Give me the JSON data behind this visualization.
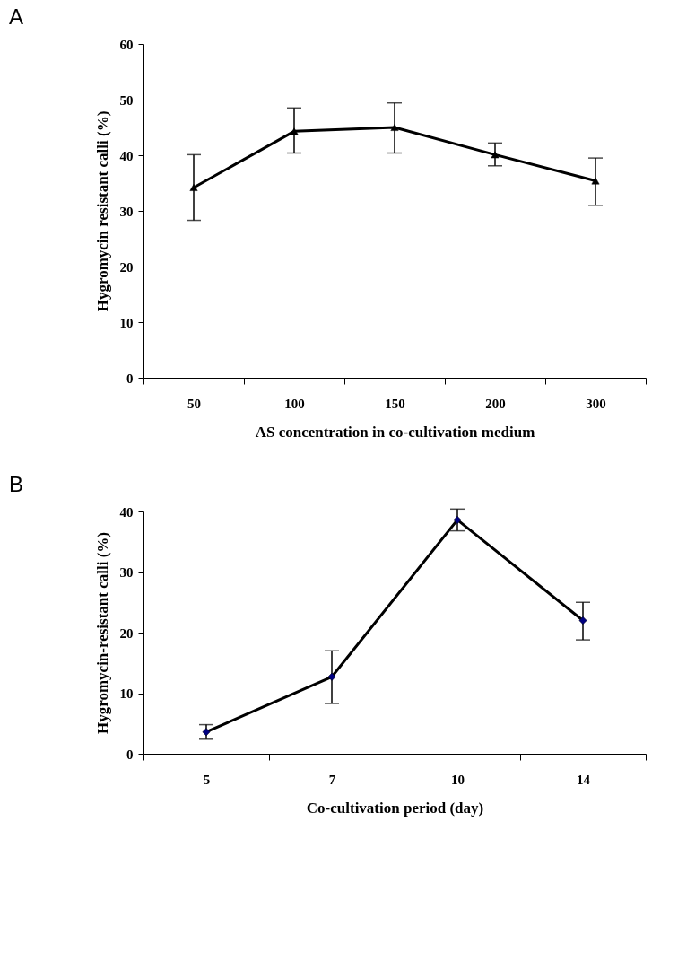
{
  "chart_data": [
    {
      "type": "line",
      "title": "A",
      "xlabel": "AS concentration in co-cultivation medium",
      "ylabel": "Hygromycin resistant calli (%)",
      "categories": [
        "50",
        "100",
        "150",
        "200",
        "300"
      ],
      "series": [
        {
          "color": "#000000",
          "marker": "triangle",
          "values": [
            34.2,
            44.3,
            45.0,
            40.1,
            35.4
          ],
          "errors": [
            [
              28.3,
              40.1
            ],
            [
              40.4,
              48.5
            ],
            [
              40.4,
              49.4
            ],
            [
              38.1,
              42.2
            ],
            [
              31.0,
              39.5
            ]
          ]
        }
      ],
      "ylim": [
        0,
        60
      ],
      "yticks": [
        0,
        10,
        20,
        30,
        40,
        50,
        60
      ],
      "grid": false,
      "line_style": "solid"
    },
    {
      "type": "line",
      "title": "B",
      "xlabel": "Co-cultivation period (day)",
      "ylabel": "Hygromycin-resistant calli (%)",
      "categories": [
        "5",
        "7",
        "10",
        "14"
      ],
      "series": [
        {
          "color": "#000080",
          "marker": "diamond",
          "values": [
            3.6,
            12.7,
            38.6,
            22.0
          ],
          "errors": [
            [
              2.4,
              4.8
            ],
            [
              8.3,
              17.0
            ],
            [
              36.8,
              40.4
            ],
            [
              18.8,
              25.0
            ]
          ]
        }
      ],
      "ylim": [
        0,
        40
      ],
      "yticks": [
        0,
        10,
        20,
        30,
        40
      ],
      "grid": false,
      "line_style": "solid"
    }
  ]
}
